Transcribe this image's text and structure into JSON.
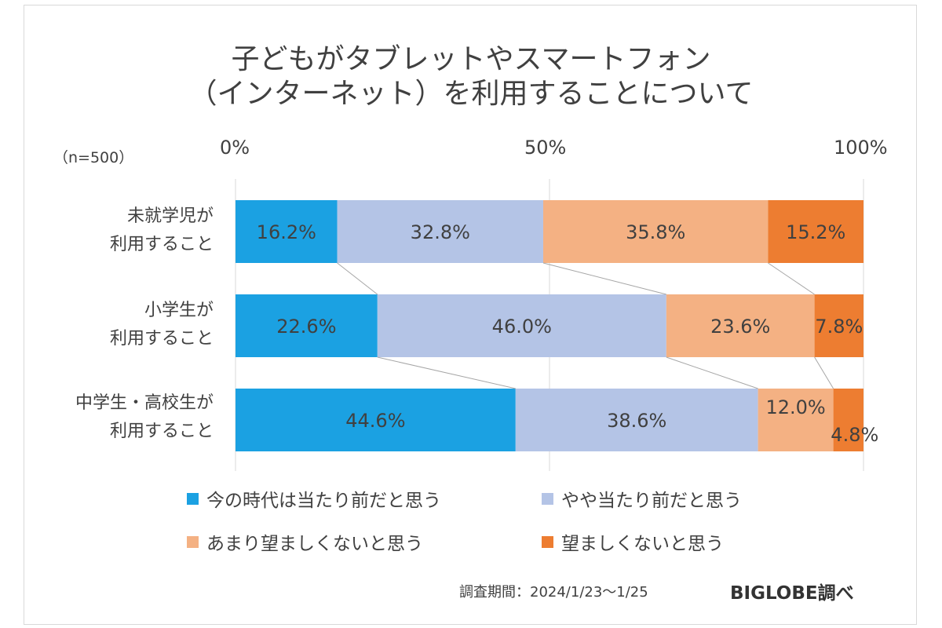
{
  "title_line1": "子どもがタブレットやスマートフォン",
  "title_line2": "（インターネット）を利用することについて",
  "sample_note": "（n=500）",
  "footer": {
    "survey_period": "調査期間：2024/1/23〜1/25",
    "brand": "BIGLOBE調べ"
  },
  "chart_data": {
    "type": "bar",
    "orientation": "horizontal",
    "stacked": "100%",
    "categories": [
      [
        "未就学児が",
        "利用すること"
      ],
      [
        "小学生が",
        "利用すること"
      ],
      [
        "中学生・高校生が",
        "利用すること"
      ]
    ],
    "x_ticks": [
      "0%",
      "50%",
      "100%"
    ],
    "xlim": [
      0,
      100
    ],
    "grid": true,
    "legend_position": "bottom",
    "series": [
      {
        "name": "今の時代は当たり前だと思う",
        "color": "#1ba1e2",
        "values": [
          16.2,
          22.6,
          44.6
        ],
        "labels": [
          "16.2%",
          "22.6%",
          "44.6%"
        ]
      },
      {
        "name": "やや当たり前だと思う",
        "color": "#b4c4e6",
        "values": [
          32.8,
          46.0,
          38.6
        ],
        "labels": [
          "32.8%",
          "46.0%",
          "38.6%"
        ]
      },
      {
        "name": "あまり望ましくないと思う",
        "color": "#f4b183",
        "values": [
          35.8,
          23.6,
          12.0
        ],
        "labels": [
          "35.8%",
          "23.6%",
          "12.0%"
        ]
      },
      {
        "name": "望ましくないと思う",
        "color": "#ed7d31",
        "values": [
          15.2,
          7.8,
          4.8
        ],
        "labels": [
          "15.2%",
          "7.8%",
          "4.8%"
        ]
      }
    ]
  }
}
